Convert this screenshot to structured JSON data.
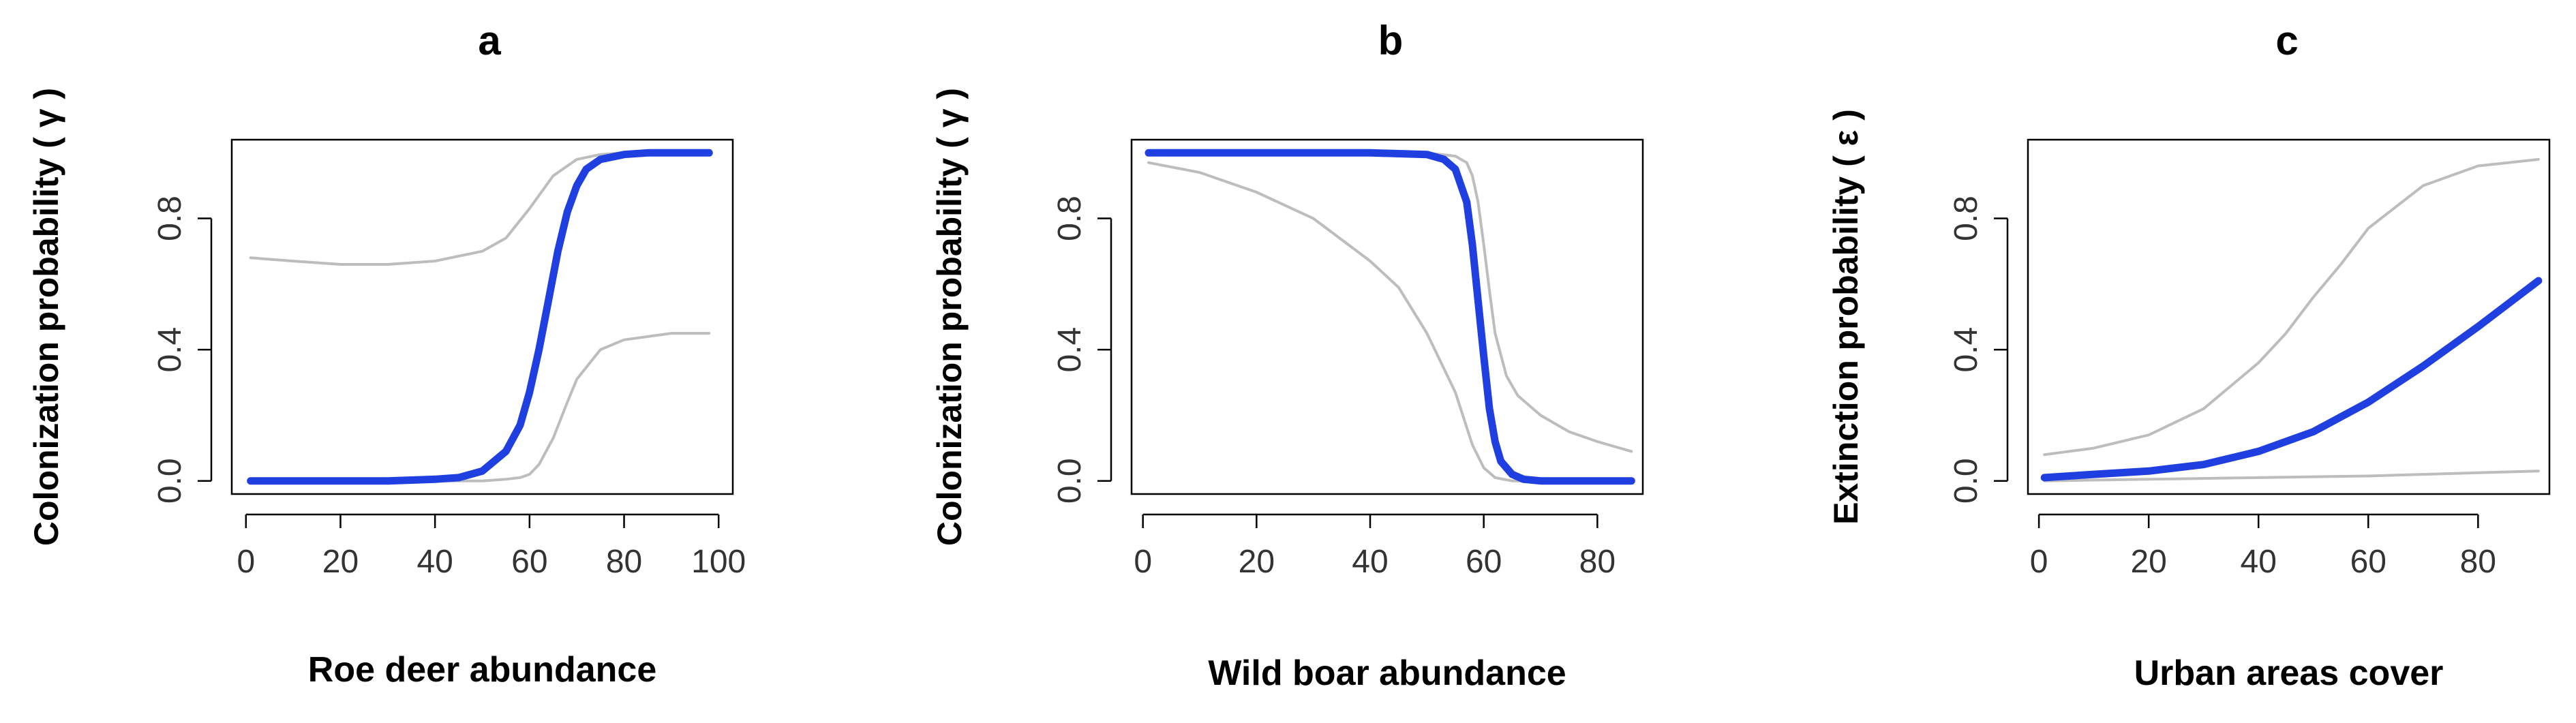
{
  "colors": {
    "fit_line": "#1f3fe0",
    "ci_line": "#bdbdbd",
    "axis": "#000000",
    "background": "#ffffff"
  },
  "chart_data": [
    {
      "type": "line",
      "title": "a",
      "xlabel": "Roe deer abundance",
      "ylabel": "Colonization probability ( γ )",
      "xlim": [
        -3,
        103
      ],
      "ylim": [
        -0.04,
        1.04
      ],
      "xticks": [
        0,
        20,
        40,
        60,
        80,
        100
      ],
      "yticks": [
        0.0,
        0.4,
        0.8
      ],
      "ytick_labels": [
        "0.0",
        "0.4",
        "0.8"
      ],
      "grid": false,
      "series": [
        {
          "role": "estimate",
          "x": [
            1,
            10,
            20,
            30,
            40,
            45,
            50,
            55,
            58,
            60,
            62,
            64,
            66,
            68,
            70,
            72,
            75,
            80,
            85,
            90,
            98
          ],
          "y": [
            0.0,
            0.0,
            0.0,
            0.0,
            0.005,
            0.01,
            0.03,
            0.09,
            0.17,
            0.27,
            0.4,
            0.55,
            0.7,
            0.82,
            0.9,
            0.95,
            0.98,
            0.995,
            1.0,
            1.0,
            1.0
          ]
        },
        {
          "role": "upper-ci",
          "x": [
            1,
            10,
            20,
            30,
            40,
            50,
            55,
            60,
            65,
            70,
            75,
            80,
            90,
            98
          ],
          "y": [
            0.68,
            0.67,
            0.66,
            0.66,
            0.67,
            0.7,
            0.74,
            0.83,
            0.93,
            0.98,
            0.995,
            1.0,
            1.0,
            1.0
          ]
        },
        {
          "role": "lower-ci",
          "x": [
            1,
            20,
            40,
            50,
            55,
            58,
            60,
            62,
            65,
            68,
            70,
            75,
            80,
            90,
            98
          ],
          "y": [
            0.0,
            0.0,
            0.0,
            0.0,
            0.005,
            0.01,
            0.02,
            0.05,
            0.13,
            0.24,
            0.31,
            0.4,
            0.43,
            0.45,
            0.45
          ]
        }
      ]
    },
    {
      "type": "line",
      "title": "b",
      "xlabel": "Wild boar abundance",
      "ylabel": "Colonization probability ( γ )",
      "xlim": [
        -2,
        88
      ],
      "ylim": [
        -0.04,
        1.04
      ],
      "xticks": [
        0,
        20,
        40,
        60,
        80
      ],
      "yticks": [
        0.0,
        0.4,
        0.8
      ],
      "ytick_labels": [
        "0.0",
        "0.4",
        "0.8"
      ],
      "grid": false,
      "series": [
        {
          "role": "estimate",
          "x": [
            1,
            10,
            20,
            30,
            40,
            50,
            53,
            55,
            57,
            58,
            59,
            60,
            61,
            62,
            63,
            65,
            67,
            70,
            75,
            80,
            86
          ],
          "y": [
            1.0,
            1.0,
            1.0,
            1.0,
            1.0,
            0.995,
            0.98,
            0.95,
            0.85,
            0.72,
            0.55,
            0.38,
            0.22,
            0.12,
            0.06,
            0.02,
            0.005,
            0.0,
            0.0,
            0.0,
            0.0
          ]
        },
        {
          "role": "upper-ci",
          "x": [
            1,
            20,
            40,
            50,
            55,
            57,
            58,
            59,
            60,
            61,
            62,
            64,
            66,
            70,
            75,
            80,
            86
          ],
          "y": [
            1.0,
            1.0,
            1.0,
            1.0,
            0.99,
            0.97,
            0.93,
            0.85,
            0.72,
            0.58,
            0.45,
            0.32,
            0.26,
            0.2,
            0.15,
            0.12,
            0.09
          ]
        },
        {
          "role": "lower-ci",
          "x": [
            1,
            10,
            20,
            30,
            40,
            45,
            50,
            55,
            58,
            60,
            62,
            65,
            70,
            80,
            86
          ],
          "y": [
            0.97,
            0.94,
            0.88,
            0.8,
            0.67,
            0.59,
            0.45,
            0.27,
            0.11,
            0.04,
            0.01,
            0.0,
            0.0,
            0.0,
            0.0
          ]
        }
      ]
    },
    {
      "type": "line",
      "title": "c",
      "xlabel": "Urban areas cover",
      "ylabel": "Extinction probability ( ε )",
      "xlim": [
        -2,
        93
      ],
      "ylim": [
        -0.04,
        1.04
      ],
      "xticks": [
        0,
        20,
        40,
        60,
        80
      ],
      "yticks": [
        0.0,
        0.4,
        0.8
      ],
      "ytick_labels": [
        "0.0",
        "0.4",
        "0.8"
      ],
      "grid": false,
      "series": [
        {
          "role": "estimate",
          "x": [
            1,
            10,
            20,
            30,
            40,
            50,
            60,
            70,
            80,
            91
          ],
          "y": [
            0.01,
            0.02,
            0.03,
            0.05,
            0.09,
            0.15,
            0.24,
            0.35,
            0.47,
            0.61
          ]
        },
        {
          "role": "upper-ci",
          "x": [
            1,
            10,
            20,
            30,
            40,
            45,
            50,
            55,
            60,
            70,
            80,
            91
          ],
          "y": [
            0.08,
            0.1,
            0.14,
            0.22,
            0.36,
            0.45,
            0.56,
            0.66,
            0.77,
            0.9,
            0.96,
            0.98
          ]
        },
        {
          "role": "lower-ci",
          "x": [
            1,
            20,
            40,
            60,
            80,
            91
          ],
          "y": [
            0.0,
            0.005,
            0.01,
            0.015,
            0.025,
            0.03
          ]
        }
      ]
    }
  ]
}
